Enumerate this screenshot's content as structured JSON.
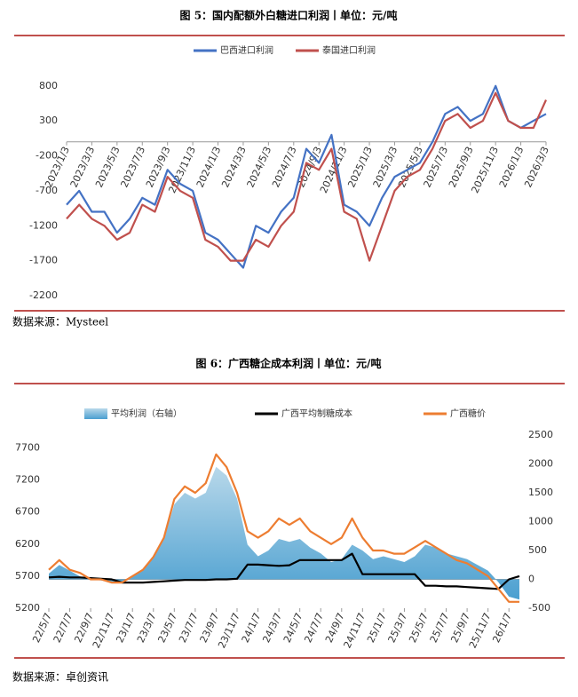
{
  "chart_data": [
    {
      "type": "line",
      "title": "图 5：国内配额外白糖进口利润丨单位：元/吨",
      "source": "数据来源：Mysteel",
      "legend": "top",
      "categories": [
        "2023/1/3",
        null,
        "2023/3/3",
        null,
        "2023/5/3",
        null,
        "2023/7/3",
        null,
        "2023/9/3",
        null,
        "2023/11/3",
        null,
        "2024/1/3",
        null,
        "2024/3/3",
        null,
        "2024/5/3",
        null,
        "2024/7/3",
        null,
        "2024/9/3",
        null,
        "2024/11/3",
        null,
        "2025/1/3",
        null,
        "2025/3/3",
        null,
        "2025/5/3",
        null,
        "2025/7/3",
        null,
        "2025/9/3",
        null,
        "2025/11/3",
        null,
        "2026/1/3",
        null,
        "2026/3/3"
      ],
      "series": [
        {
          "name": "巴西进口利润",
          "color": "#4472c4",
          "values": [
            -900,
            -700,
            -1000,
            -1000,
            -1300,
            -1100,
            -800,
            -900,
            -400,
            -600,
            -700,
            -1300,
            -1400,
            -1600,
            -1800,
            -1200,
            -1300,
            -1000,
            -800,
            -100,
            -300,
            100,
            -900,
            -1000,
            -1200,
            -800,
            -500,
            -400,
            -300,
            0,
            400,
            500,
            300,
            400,
            800,
            300,
            200,
            300,
            400
          ]
        },
        {
          "name": "泰国进口利润",
          "color": "#c0504d",
          "values": [
            -1100,
            -900,
            -1100,
            -1200,
            -1400,
            -1300,
            -900,
            -1000,
            -500,
            -700,
            -800,
            -1400,
            -1500,
            -1700,
            -1700,
            -1400,
            -1500,
            -1200,
            -1000,
            -300,
            -400,
            -100,
            -1000,
            -1100,
            -1700,
            -1200,
            -700,
            -500,
            -400,
            -100,
            300,
            400,
            200,
            300,
            700,
            300,
            200,
            200,
            600
          ]
        }
      ],
      "ylim": [
        -2200,
        1000
      ],
      "yticks": [
        800,
        300,
        -200,
        -700,
        -1200,
        -1700,
        -2200
      ],
      "grid": false
    },
    {
      "type": "line",
      "title": "图 6：广西糖企成本利润丨单位：元/吨",
      "source": "数据来源：卓创资讯",
      "legend": "top",
      "categories": [
        "22/5/7",
        null,
        "22/7/7",
        null,
        "22/9/7",
        null,
        "22/11/7",
        null,
        "23/1/7",
        null,
        "23/3/7",
        null,
        "23/5/7",
        null,
        "23/7/7",
        null,
        "23/9/7",
        null,
        "23/11/7",
        null,
        "24/1/7",
        null,
        "24/3/7",
        null,
        "24/5/7",
        null,
        "24/7/7",
        null,
        "24/9/7",
        null,
        "24/11/7",
        null,
        "25/1/7",
        null,
        "25/3/7",
        null,
        "25/5/7",
        null,
        "25/7/7",
        null,
        "25/9/7",
        null,
        "25/11/7",
        null,
        "26/1/7",
        null
      ],
      "series": [
        {
          "name": "平均利润（右轴）",
          "type": "area",
          "axis": "y2",
          "color": "#6aaed6",
          "values": [
            100,
            250,
            150,
            50,
            0,
            -20,
            -50,
            -50,
            50,
            150,
            400,
            700,
            1300,
            1500,
            1400,
            1500,
            1950,
            1800,
            1400,
            600,
            400,
            500,
            700,
            650,
            700,
            550,
            450,
            300,
            350,
            600,
            500,
            350,
            400,
            350,
            300,
            400,
            600,
            550,
            450,
            400,
            350,
            250,
            150,
            -50,
            -300,
            -350
          ]
        },
        {
          "name": "广西平均制糖成本",
          "type": "line",
          "color": "#000000",
          "values": [
            5680,
            5690,
            5680,
            5680,
            5670,
            5660,
            5650,
            5600,
            5600,
            5600,
            5610,
            5620,
            5630,
            5640,
            5640,
            5640,
            5650,
            5650,
            5660,
            5880,
            5880,
            5870,
            5860,
            5870,
            5950,
            5950,
            5950,
            5950,
            5950,
            6050,
            5730,
            5730,
            5730,
            5730,
            5730,
            5730,
            5550,
            5550,
            5540,
            5540,
            5530,
            5520,
            5510,
            5500,
            5650,
            5700
          ]
        },
        {
          "name": "广西糖价",
          "type": "line",
          "color": "#ed7d31",
          "values": [
            5800,
            5950,
            5800,
            5750,
            5650,
            5650,
            5600,
            5600,
            5700,
            5800,
            6000,
            6300,
            6900,
            7100,
            7000,
            7150,
            7600,
            7400,
            7000,
            6400,
            6300,
            6400,
            6600,
            6500,
            6600,
            6400,
            6300,
            6200,
            6300,
            6600,
            6300,
            6100,
            6100,
            6050,
            6050,
            6150,
            6250,
            6150,
            6050,
            5950,
            5900,
            5800,
            5700,
            5500,
            5300,
            5300
          ]
        }
      ],
      "ylim": [
        5200,
        7900
      ],
      "yticks": [
        5200,
        5700,
        6200,
        6700,
        7200,
        7700
      ],
      "y2lim": [
        -500,
        2500
      ],
      "y2ticks": [
        -500,
        0,
        500,
        1000,
        1500,
        2000,
        2500
      ],
      "grid": false
    }
  ]
}
